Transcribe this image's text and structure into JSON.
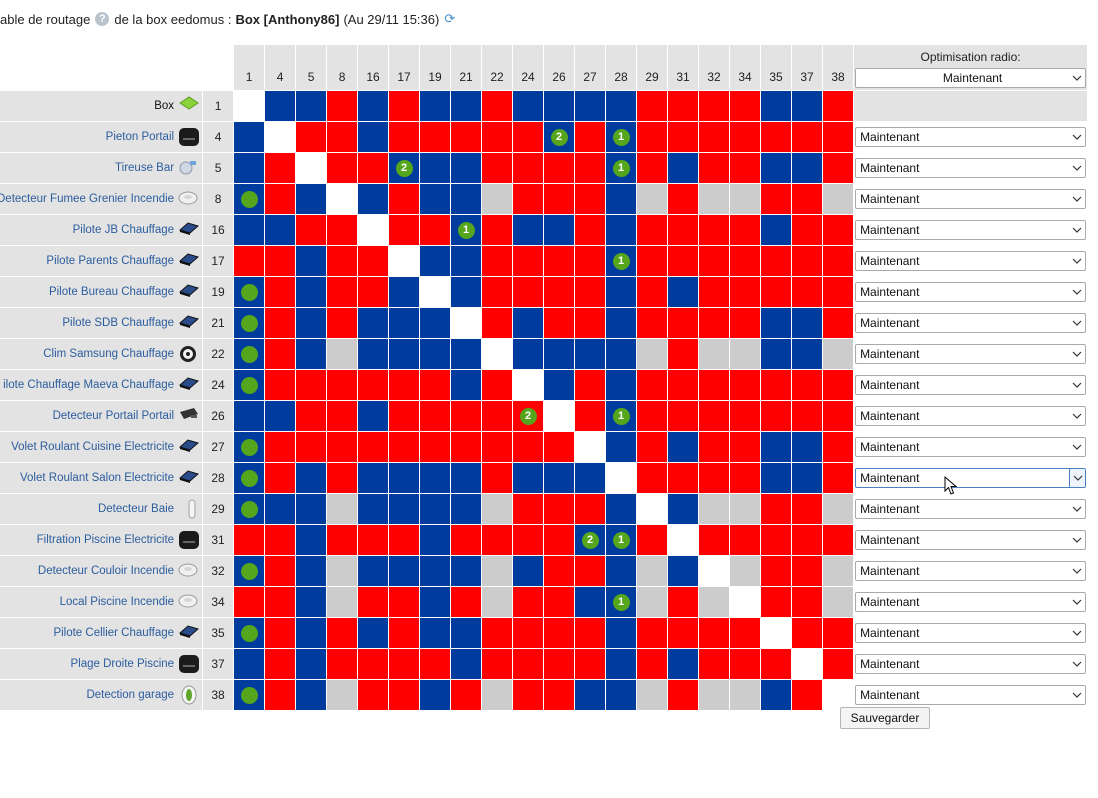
{
  "title": {
    "prefix": "able de routage",
    "middle": "de la box eedomus :",
    "box": "Box [Anthony86]",
    "date": "(Au 29/11 15:36)",
    "help": "?",
    "refresh": "⟳"
  },
  "optimisation": {
    "header": "Optimisation radio:",
    "header_select": "Maintenant"
  },
  "save_label": "Sauvegarder",
  "columns": [
    "1",
    "4",
    "5",
    "8",
    "16",
    "17",
    "19",
    "21",
    "22",
    "24",
    "26",
    "27",
    "28",
    "29",
    "31",
    "32",
    "34",
    "35",
    "37",
    "38"
  ],
  "rows": [
    {
      "name": "Box",
      "id": "1",
      "icon": "box-icon",
      "link": false,
      "select": "",
      "cells": "WBBRBRBBRBBBBRRRRBBR",
      "badges": {}
    },
    {
      "name": "Pieton Portail",
      "id": "4",
      "icon": "module-black-icon",
      "link": true,
      "select": "Maintenant",
      "cells": "BWRRBRRRRRBRBRRRRRRR",
      "badges": {
        "10": "2",
        "12": "1"
      }
    },
    {
      "name": "Tireuse Bar",
      "id": "5",
      "icon": "valve-icon",
      "link": true,
      "select": "Maintenant",
      "cells": "BRWRRBBBRRRRBRBRRBBR",
      "badges": {
        "5": "2",
        "12": "1"
      }
    },
    {
      "name": "Detecteur Fumee Grenier Incendie",
      "id": "8",
      "icon": "smoke-detector-icon",
      "link": true,
      "select": "Maintenant",
      "cells": "BRBWBRBBGRRRBGRGGRRG",
      "badges": {
        "0": "dot"
      }
    },
    {
      "name": "Pilote JB Chauffage",
      "id": "16",
      "icon": "heater-module-icon",
      "link": true,
      "select": "Maintenant",
      "cells": "BBRRWRRBRBBRBRRRRBRR",
      "badges": {
        "7": "1"
      }
    },
    {
      "name": "Pilote Parents Chauffage",
      "id": "17",
      "icon": "heater-module-icon",
      "link": true,
      "select": "Maintenant",
      "cells": "RRBRRWBBRRRRBRRRRRRR",
      "badges": {
        "12": "1"
      }
    },
    {
      "name": "Pilote Bureau Chauffage",
      "id": "19",
      "icon": "heater-module-icon",
      "link": true,
      "select": "Maintenant",
      "cells": "BRBRRBWBRRRRBRBRRRRR",
      "badges": {
        "0": "dot"
      }
    },
    {
      "name": "Pilote SDB Chauffage",
      "id": "21",
      "icon": "heater-module-icon",
      "link": true,
      "select": "Maintenant",
      "cells": "BRBRBBBWRBRRBRRRRBBR",
      "badges": {
        "0": "dot"
      }
    },
    {
      "name": "Clim Samsung Chauffage",
      "id": "22",
      "icon": "clim-icon",
      "link": true,
      "select": "Maintenant",
      "cells": "BRBGBBBBWBBBBGRGGBBG",
      "badges": {
        "0": "dot"
      }
    },
    {
      "name": "ilote Chauffage Maeva Chauffage",
      "id": "24",
      "icon": "heater-module-icon",
      "link": true,
      "select": "Maintenant",
      "cells": "BRRRRRRBRWBRBRRRRRRR",
      "badges": {
        "0": "dot"
      }
    },
    {
      "name": "Detecteur Portail Portail",
      "id": "26",
      "icon": "door-sensor-icon",
      "link": true,
      "select": "Maintenant",
      "cells": "BBRRBRRRRRWRBRRRRRRR",
      "badges": {
        "9": "2",
        "12": "1"
      }
    },
    {
      "name": "Volet Roulant Cuisine Electricite",
      "id": "27",
      "icon": "heater-module-icon",
      "link": true,
      "select": "Maintenant",
      "cells": "BRRRRRRRRRRWBRBRRBBR",
      "badges": {
        "0": "dot"
      }
    },
    {
      "name": "Volet Roulant Salon Electricite",
      "id": "28",
      "icon": "heater-module-icon",
      "link": true,
      "select": "Maintenant",
      "cells": "BRBRBBBBRBBBWRRRRBBR",
      "badges": {
        "0": "dot"
      },
      "focus": true
    },
    {
      "name": "Detecteur Baie",
      "id": "29",
      "icon": "slim-sensor-icon",
      "link": true,
      "select": "Maintenant",
      "cells": "BBBGBBBBGRRRBWBGGRRG",
      "badges": {
        "0": "dot"
      }
    },
    {
      "name": "Filtration Piscine Electricite",
      "id": "31",
      "icon": "module-black-icon",
      "link": true,
      "select": "Maintenant",
      "cells": "RRBRRRBRRRRBBRWRRRRR",
      "badges": {
        "11": "2",
        "12": "1"
      }
    },
    {
      "name": "Detecteur Couloir Incendie",
      "id": "32",
      "icon": "smoke-detector-icon",
      "link": true,
      "select": "Maintenant",
      "cells": "BRBGBBBBGBRRBGBWGRRG",
      "badges": {
        "0": "dot"
      }
    },
    {
      "name": "Local Piscine Incendie",
      "id": "34",
      "icon": "smoke-detector-icon",
      "link": true,
      "select": "Maintenant",
      "cells": "RRBGRRBRGRRBBGRGWRRG",
      "badges": {
        "12": "1"
      }
    },
    {
      "name": "Pilote Cellier Chauffage",
      "id": "35",
      "icon": "heater-module-icon",
      "link": true,
      "select": "Maintenant",
      "cells": "BRBRBRBBRRRRBRRRRWRR",
      "badges": {
        "0": "dot"
      }
    },
    {
      "name": "Plage Droite Piscine",
      "id": "37",
      "icon": "module-black-icon",
      "link": true,
      "select": "Maintenant",
      "cells": "BRBRRRRBRRRRBRBRRRWR",
      "badges": {}
    },
    {
      "name": "Detection garage",
      "id": "38",
      "icon": "eye-sensor-icon",
      "link": true,
      "select": "Maintenant",
      "cells": "BRBGRRBRGRRBBGRGGBRW",
      "badges": {
        "0": "dot"
      }
    }
  ],
  "colors": {
    "red": "#ff0000",
    "blue": "#003c9e",
    "gray": "#cccccc",
    "badge": "#55a51d"
  }
}
